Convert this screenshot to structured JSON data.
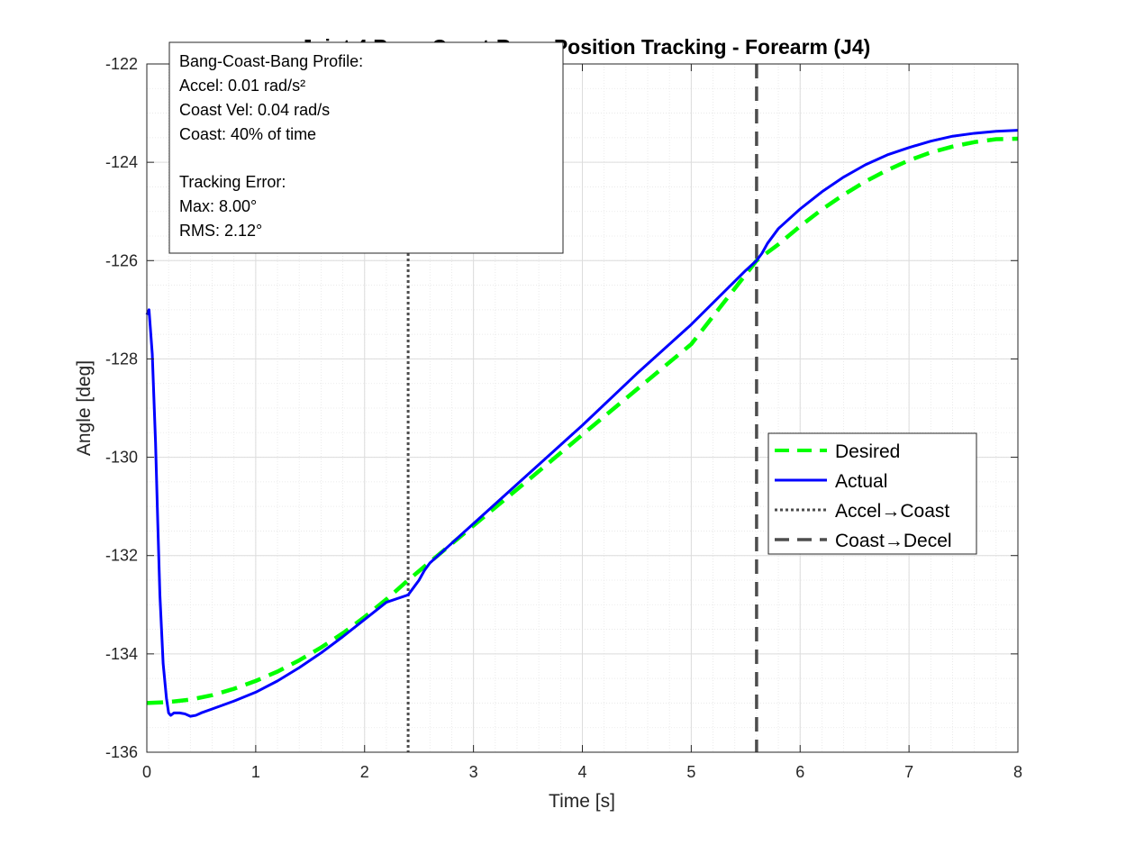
{
  "chart_data": {
    "type": "line",
    "title": "Joint 4 Bang-Coast-Bang Position Tracking - Forearm (J4)",
    "xlabel": "Time [s]",
    "ylabel": "Angle [deg]",
    "xlim": [
      0,
      8
    ],
    "ylim": [
      -136,
      -122
    ],
    "xticks": [
      0,
      1,
      2,
      3,
      4,
      5,
      6,
      7,
      8
    ],
    "xtick_labels": [
      "0",
      "1",
      "2",
      "3",
      "4",
      "5",
      "6",
      "7",
      "8"
    ],
    "yticks": [
      -136,
      -134,
      -132,
      -130,
      -128,
      -126,
      -124,
      -122
    ],
    "ytick_labels": [
      "-136",
      "-134",
      "-132",
      "-130",
      "-128",
      "-126",
      "-124",
      "-122"
    ],
    "grid": true,
    "minor_grid": true,
    "legend_position": "right-center",
    "series": [
      {
        "name": "Desired",
        "style": "dashed",
        "color": "#00ff00",
        "x": [
          0,
          0.2,
          0.4,
          0.6,
          0.8,
          1.0,
          1.2,
          1.4,
          1.6,
          1.8,
          2.0,
          2.2,
          2.4,
          2.6,
          2.8,
          3.0,
          3.5,
          4.0,
          4.5,
          5.0,
          5.6,
          5.8,
          6.0,
          6.2,
          6.4,
          6.6,
          6.8,
          7.0,
          7.2,
          7.4,
          7.6,
          7.8,
          8.0
        ],
        "y": [
          -135.0,
          -134.98,
          -134.93,
          -134.84,
          -134.71,
          -134.55,
          -134.36,
          -134.13,
          -133.87,
          -133.58,
          -133.25,
          -132.89,
          -132.5,
          -132.13,
          -131.76,
          -131.39,
          -130.47,
          -129.54,
          -128.62,
          -127.7,
          -126.0,
          -125.67,
          -125.3,
          -124.96,
          -124.66,
          -124.39,
          -124.16,
          -123.96,
          -123.8,
          -123.68,
          -123.59,
          -123.53,
          -123.52
        ]
      },
      {
        "name": "Actual",
        "style": "solid",
        "color": "#0000ff",
        "x": [
          0,
          0.02,
          0.05,
          0.08,
          0.1,
          0.12,
          0.15,
          0.18,
          0.2,
          0.22,
          0.25,
          0.3,
          0.35,
          0.4,
          0.45,
          0.5,
          0.6,
          0.7,
          0.8,
          1.0,
          1.2,
          1.4,
          1.6,
          1.8,
          2.0,
          2.2,
          2.4,
          2.45,
          2.5,
          2.55,
          2.6,
          2.7,
          2.8,
          3.0,
          3.5,
          4.0,
          4.5,
          5.0,
          5.5,
          5.6,
          5.65,
          5.7,
          5.8,
          6.0,
          6.2,
          6.4,
          6.6,
          6.8,
          7.0,
          7.2,
          7.4,
          7.6,
          7.8,
          8.0
        ],
        "y": [
          -127.1,
          -127.0,
          -127.9,
          -129.7,
          -131.3,
          -132.8,
          -134.2,
          -134.9,
          -135.2,
          -135.25,
          -135.2,
          -135.2,
          -135.22,
          -135.27,
          -135.25,
          -135.2,
          -135.12,
          -135.04,
          -134.96,
          -134.78,
          -134.55,
          -134.28,
          -133.98,
          -133.65,
          -133.3,
          -132.95,
          -132.8,
          -132.65,
          -132.5,
          -132.3,
          -132.15,
          -131.95,
          -131.75,
          -131.35,
          -130.35,
          -129.35,
          -128.3,
          -127.3,
          -126.2,
          -126.0,
          -125.85,
          -125.65,
          -125.35,
          -124.95,
          -124.6,
          -124.3,
          -124.05,
          -123.85,
          -123.7,
          -123.57,
          -123.47,
          -123.41,
          -123.37,
          -123.35
        ]
      }
    ],
    "vlines": [
      {
        "name": "Accel→Coast",
        "x": 2.4,
        "style": "dotted",
        "color": "#4d4d4d"
      },
      {
        "name": "Coast→Decel",
        "x": 5.6,
        "style": "dashed",
        "color": "#4d4d4d"
      }
    ],
    "annotation": {
      "lines": [
        "Bang-Coast-Bang Profile:",
        "Accel: 0.01 rad/s²",
        "Coast Vel: 0.04 rad/s",
        "Coast: 40% of time",
        "",
        "Tracking Error:",
        "Max: 8.00°",
        "RMS: 2.12°"
      ]
    },
    "legend_entries": [
      "Desired",
      "Actual",
      "Accel→Coast",
      "Coast→Decel"
    ]
  }
}
